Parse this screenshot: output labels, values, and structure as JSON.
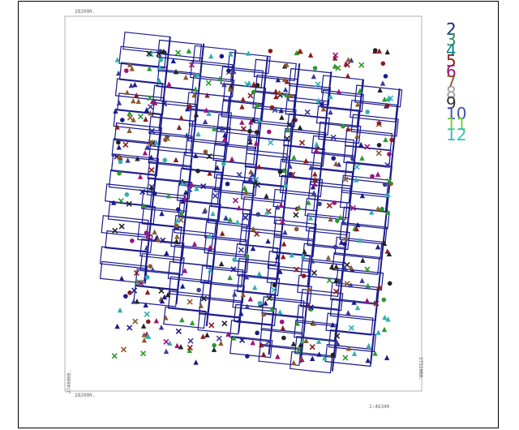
{
  "map": {
    "frame_labels": {
      "top_left": "282000.",
      "bottom_left": "282000.",
      "left_vertical": "2740000.",
      "right_vertical": "2752000.",
      "scale": "1:46340"
    },
    "legend": {
      "entries": [
        {
          "label": "2",
          "color": "#1a237e"
        },
        {
          "label": "3",
          "color": "#2e8b57"
        },
        {
          "label": "4",
          "color": "#00838f"
        },
        {
          "label": "5",
          "color": "#8b1a1a"
        },
        {
          "label": "6",
          "color": "#a0107a"
        },
        {
          "label": "7",
          "color": "#8b5a2b"
        },
        {
          "label": "8",
          "color": "#9e9e9e"
        },
        {
          "label": "9",
          "color": "#333333"
        },
        {
          "label": "10",
          "color": "#3f51b5"
        },
        {
          "label": "11",
          "color": "#7ccd3a"
        },
        {
          "label": "12",
          "color": "#30c0c0"
        }
      ]
    },
    "grid_color": "#1a1a8c",
    "marker_palette": [
      "#1a1a8c",
      "#2a9a2a",
      "#8b1a1a",
      "#a0107a",
      "#8b5a2b",
      "#222222",
      "#30b0b0",
      "#3a3a9a"
    ]
  }
}
